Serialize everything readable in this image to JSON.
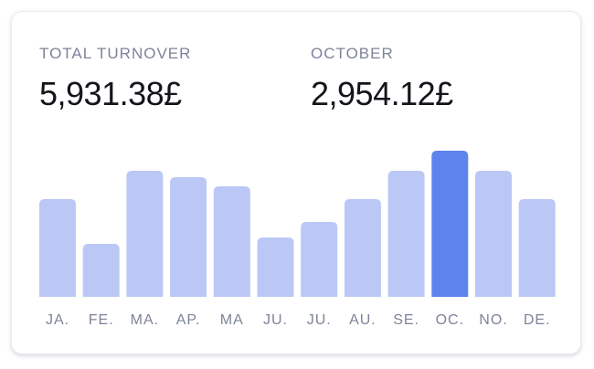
{
  "summary": {
    "total_label": "TOTAL TURNOVER",
    "total_value": "5,931.38£",
    "month_label": "OCTOBER",
    "month_value": "2,954.12£"
  },
  "colors": {
    "bar": "#bbc8f6",
    "bar_highlight": "#5e83ed",
    "tick_text": "#7d8399"
  },
  "chart_data": {
    "type": "bar",
    "title": "",
    "xlabel": "",
    "ylabel": "",
    "categories": [
      "JA.",
      "FE.",
      "MA.",
      "AP.",
      "MA",
      "JU.",
      "JU.",
      "AU.",
      "SE.",
      "OC.",
      "NO.",
      "DE."
    ],
    "values": [
      107,
      58,
      138,
      131,
      121,
      65,
      82,
      107,
      138,
      160,
      138,
      107
    ],
    "highlight_index": 9,
    "ylim": [
      0,
      170
    ],
    "grid": false,
    "legend": "none"
  }
}
